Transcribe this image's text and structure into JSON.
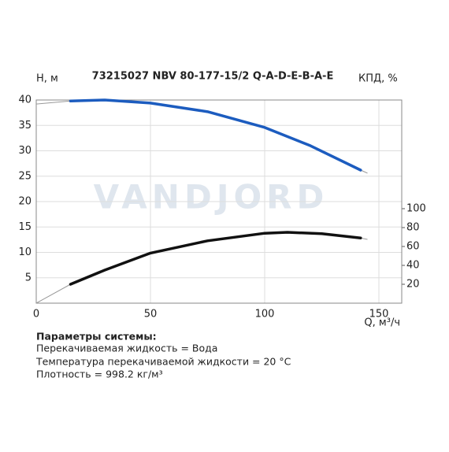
{
  "chart_data": {
    "type": "line",
    "title": "73215027 NBV 80-177-15/2 Q-A-D-E-B-A-E",
    "watermark": "VANDJORD",
    "y_label": "H, м",
    "y2_label": "КПД, %",
    "x_label": "Q, м³/ч",
    "xlim": [
      0,
      160
    ],
    "xticks": [
      0,
      50,
      100,
      150
    ],
    "ylim": [
      0,
      40
    ],
    "yticks": [
      5,
      10,
      15,
      20,
      25,
      30,
      35,
      40
    ],
    "y2lim": [
      0,
      215
    ],
    "y2ticks": [
      20,
      40,
      60,
      80,
      100
    ],
    "grid": true,
    "series": [
      {
        "name": "H",
        "color": "#1c5cbf",
        "x": [
          0,
          15,
          30,
          50,
          75,
          100,
          120,
          142,
          145
        ],
        "values": [
          39.2,
          39.8,
          40,
          39.4,
          37.7,
          34.6,
          31,
          26.2,
          25.6
        ]
      },
      {
        "name": "КПД",
        "color": "#111111",
        "axis": "y2",
        "x": [
          0,
          15,
          30,
          50,
          75,
          100,
          110,
          125,
          142,
          145
        ],
        "values": [
          0,
          20,
          35,
          53,
          66,
          74,
          75,
          73.5,
          69,
          67.5
        ]
      }
    ]
  },
  "parameters": {
    "heading": "Параметры системы:",
    "lines": [
      "Перекачиваемая жидкость = Вода",
      "Температура перекачиваемой жидкости = 20 °C",
      "Плотность = 998.2 кг/м³"
    ]
  }
}
